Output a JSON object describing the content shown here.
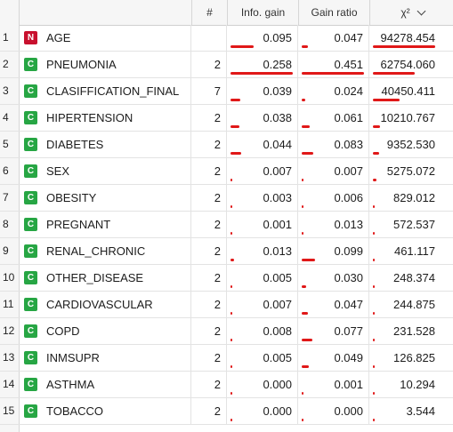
{
  "colors": {
    "numeric_badge": "#c8102e",
    "categorical_badge": "#27a644",
    "bar": "#e01818"
  },
  "header": {
    "n": "#",
    "info_gain": "Info. gain",
    "gain_ratio": "Gain ratio",
    "chi2": "χ²"
  },
  "rows": [
    {
      "idx": "1",
      "type": "N",
      "name": "AGE",
      "n": "",
      "info_gain": "0.095",
      "gain_ratio": "0.047",
      "chi2": "94278.454",
      "ig": 0.095,
      "gr": 0.047,
      "x2": 94278.454
    },
    {
      "idx": "2",
      "type": "C",
      "name": "PNEUMONIA",
      "n": "2",
      "info_gain": "0.258",
      "gain_ratio": "0.451",
      "chi2": "62754.060",
      "ig": 0.258,
      "gr": 0.451,
      "x2": 62754.06
    },
    {
      "idx": "3",
      "type": "C",
      "name": "CLASIFFICATION_FINAL",
      "n": "7",
      "info_gain": "0.039",
      "gain_ratio": "0.024",
      "chi2": "40450.411",
      "ig": 0.039,
      "gr": 0.024,
      "x2": 40450.411
    },
    {
      "idx": "4",
      "type": "C",
      "name": "HIPERTENSION",
      "n": "2",
      "info_gain": "0.038",
      "gain_ratio": "0.061",
      "chi2": "10210.767",
      "ig": 0.038,
      "gr": 0.061,
      "x2": 10210.767
    },
    {
      "idx": "5",
      "type": "C",
      "name": "DIABETES",
      "n": "2",
      "info_gain": "0.044",
      "gain_ratio": "0.083",
      "chi2": "9352.530",
      "ig": 0.044,
      "gr": 0.083,
      "x2": 9352.53
    },
    {
      "idx": "6",
      "type": "C",
      "name": "SEX",
      "n": "2",
      "info_gain": "0.007",
      "gain_ratio": "0.007",
      "chi2": "5275.072",
      "ig": 0.007,
      "gr": 0.007,
      "x2": 5275.072
    },
    {
      "idx": "7",
      "type": "C",
      "name": "OBESITY",
      "n": "2",
      "info_gain": "0.003",
      "gain_ratio": "0.006",
      "chi2": "829.012",
      "ig": 0.003,
      "gr": 0.006,
      "x2": 829.012
    },
    {
      "idx": "8",
      "type": "C",
      "name": "PREGNANT",
      "n": "2",
      "info_gain": "0.001",
      "gain_ratio": "0.013",
      "chi2": "572.537",
      "ig": 0.001,
      "gr": 0.013,
      "x2": 572.537
    },
    {
      "idx": "9",
      "type": "C",
      "name": "RENAL_CHRONIC",
      "n": "2",
      "info_gain": "0.013",
      "gain_ratio": "0.099",
      "chi2": "461.117",
      "ig": 0.013,
      "gr": 0.099,
      "x2": 461.117
    },
    {
      "idx": "10",
      "type": "C",
      "name": "OTHER_DISEASE",
      "n": "2",
      "info_gain": "0.005",
      "gain_ratio": "0.030",
      "chi2": "248.374",
      "ig": 0.005,
      "gr": 0.03,
      "x2": 248.374
    },
    {
      "idx": "11",
      "type": "C",
      "name": "CARDIOVASCULAR",
      "n": "2",
      "info_gain": "0.007",
      "gain_ratio": "0.047",
      "chi2": "244.875",
      "ig": 0.007,
      "gr": 0.047,
      "x2": 244.875
    },
    {
      "idx": "12",
      "type": "C",
      "name": "COPD",
      "n": "2",
      "info_gain": "0.008",
      "gain_ratio": "0.077",
      "chi2": "231.528",
      "ig": 0.008,
      "gr": 0.077,
      "x2": 231.528
    },
    {
      "idx": "13",
      "type": "C",
      "name": "INMSUPR",
      "n": "2",
      "info_gain": "0.005",
      "gain_ratio": "0.049",
      "chi2": "126.825",
      "ig": 0.005,
      "gr": 0.049,
      "x2": 126.825
    },
    {
      "idx": "14",
      "type": "C",
      "name": "ASTHMA",
      "n": "2",
      "info_gain": "0.000",
      "gain_ratio": "0.001",
      "chi2": "10.294",
      "ig": 0.0,
      "gr": 0.001,
      "x2": 10.294
    },
    {
      "idx": "15",
      "type": "C",
      "name": "TOBACCO",
      "n": "2",
      "info_gain": "0.000",
      "gain_ratio": "0.000",
      "chi2": "3.544",
      "ig": 0.0,
      "gr": 0.0,
      "x2": 3.544
    }
  ]
}
